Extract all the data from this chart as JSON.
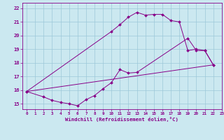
{
  "xlabel": "Windchill (Refroidissement éolien,°C)",
  "bg_color": "#cbe8f0",
  "grid_color": "#9dc8d8",
  "line_color": "#880088",
  "xlim": [
    -0.5,
    23
  ],
  "ylim": [
    14.6,
    22.4
  ],
  "xticks": [
    0,
    1,
    2,
    3,
    4,
    5,
    6,
    7,
    8,
    9,
    10,
    11,
    12,
    13,
    14,
    15,
    16,
    17,
    18,
    19,
    20,
    21,
    22,
    23
  ],
  "yticks": [
    15,
    16,
    17,
    18,
    19,
    20,
    21,
    22
  ],
  "line_straight": {
    "x": [
      0,
      22
    ],
    "y": [
      15.9,
      17.85
    ]
  },
  "line_upper": {
    "x": [
      0,
      10,
      11,
      12,
      13,
      14,
      15,
      16,
      17,
      18,
      19,
      20,
      21,
      22
    ],
    "y": [
      15.9,
      20.3,
      20.8,
      21.35,
      21.7,
      21.5,
      21.55,
      21.55,
      21.1,
      21.0,
      18.9,
      19.0,
      18.9,
      17.85
    ]
  },
  "line_lower": {
    "x": [
      0,
      2,
      3,
      4,
      5,
      6,
      7,
      8,
      9,
      10,
      11,
      12,
      13,
      19,
      20,
      21,
      22
    ],
    "y": [
      15.9,
      15.5,
      15.25,
      15.1,
      15.0,
      14.85,
      15.3,
      15.6,
      16.1,
      16.55,
      17.5,
      17.25,
      17.3,
      19.8,
      18.9,
      18.9,
      17.85
    ]
  }
}
